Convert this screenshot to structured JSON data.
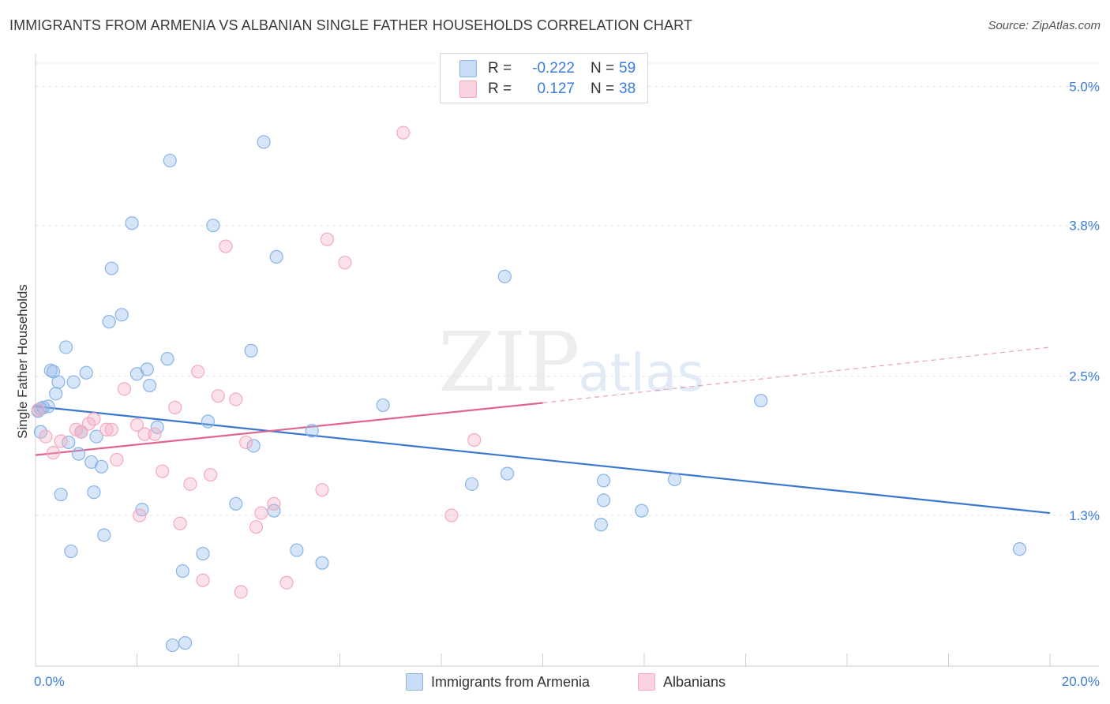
{
  "chart_data": {
    "type": "scatter",
    "title": "IMMIGRANTS FROM ARMENIA VS ALBANIAN SINGLE FATHER HOUSEHOLDS CORRELATION CHART",
    "source": "Source: ZipAtlas.com",
    "xlabel": "",
    "ylabel": "Single Father Households",
    "xlim": [
      0,
      20
    ],
    "ylim": [
      0,
      5.2
    ],
    "x_tick_labels": [
      "0.0%",
      "20.0%"
    ],
    "y_ticks": [
      1.3,
      2.5,
      3.8,
      5.0
    ],
    "y_tick_labels": [
      "1.3%",
      "2.5%",
      "3.8%",
      "5.0%"
    ],
    "watermark": {
      "main": "ZIP",
      "sub": "atlas"
    },
    "legend": {
      "rows": [
        {
          "r_label": "R =",
          "r_value": "-0.222",
          "n_label": "N =",
          "n_value": "59"
        },
        {
          "r_label": "R =",
          "r_value": "0.127",
          "n_label": "N =",
          "n_value": "38"
        }
      ]
    },
    "series": [
      {
        "name": "Immigrants from Armenia",
        "color": "#8ab4e8",
        "line_color": "#3a78d0",
        "trend": {
          "x0": 0,
          "y0": 2.24,
          "x1": 20,
          "y1": 1.32
        },
        "points": [
          [
            0.05,
            2.2
          ],
          [
            0.1,
            2.02
          ],
          [
            0.15,
            2.23
          ],
          [
            0.25,
            2.24
          ],
          [
            0.3,
            2.55
          ],
          [
            0.35,
            2.54
          ],
          [
            0.4,
            2.35
          ],
          [
            0.45,
            2.45
          ],
          [
            0.5,
            1.48
          ],
          [
            0.6,
            2.75
          ],
          [
            0.65,
            1.93
          ],
          [
            0.7,
            0.99
          ],
          [
            0.75,
            2.45
          ],
          [
            0.85,
            1.83
          ],
          [
            0.9,
            2.02
          ],
          [
            1.0,
            2.53
          ],
          [
            1.1,
            1.76
          ],
          [
            1.15,
            1.5
          ],
          [
            1.2,
            1.98
          ],
          [
            1.3,
            1.72
          ],
          [
            1.35,
            1.13
          ],
          [
            1.45,
            2.97
          ],
          [
            1.5,
            3.43
          ],
          [
            1.7,
            3.03
          ],
          [
            1.9,
            3.82
          ],
          [
            2.0,
            2.52
          ],
          [
            2.1,
            1.35
          ],
          [
            2.2,
            2.56
          ],
          [
            2.25,
            2.42
          ],
          [
            2.4,
            2.06
          ],
          [
            2.6,
            2.65
          ],
          [
            2.65,
            4.36
          ],
          [
            2.7,
            0.18
          ],
          [
            2.9,
            0.82
          ],
          [
            2.95,
            0.2
          ],
          [
            3.3,
            0.97
          ],
          [
            3.4,
            2.11
          ],
          [
            3.5,
            3.8
          ],
          [
            3.95,
            1.4
          ],
          [
            4.25,
            2.72
          ],
          [
            4.3,
            1.9
          ],
          [
            4.5,
            4.52
          ],
          [
            4.7,
            1.34
          ],
          [
            4.75,
            3.53
          ],
          [
            5.15,
            1.0
          ],
          [
            5.45,
            2.03
          ],
          [
            5.65,
            0.89
          ],
          [
            6.85,
            2.25
          ],
          [
            8.6,
            1.57
          ],
          [
            9.25,
            3.36
          ],
          [
            9.3,
            1.66
          ],
          [
            11.15,
            1.22
          ],
          [
            11.2,
            1.43
          ],
          [
            11.2,
            1.6
          ],
          [
            11.95,
            1.34
          ],
          [
            12.6,
            1.61
          ],
          [
            14.3,
            2.29
          ],
          [
            19.4,
            1.01
          ],
          [
            0.1,
            2.22
          ]
        ]
      },
      {
        "name": "Albanians",
        "color": "#f4a9c0",
        "line_color": "#e0648f",
        "trend": {
          "x0": 0,
          "y0": 1.82,
          "x1": 10,
          "y1": 2.27
        },
        "trend_dashed": {
          "x0": 10,
          "y0": 2.27,
          "x1": 20,
          "y1": 2.75
        },
        "points": [
          [
            0.05,
            2.21
          ],
          [
            0.2,
            1.98
          ],
          [
            0.35,
            1.84
          ],
          [
            0.5,
            1.94
          ],
          [
            0.8,
            2.04
          ],
          [
            0.9,
            2.02
          ],
          [
            1.05,
            2.09
          ],
          [
            1.15,
            2.13
          ],
          [
            1.4,
            2.04
          ],
          [
            1.5,
            2.04
          ],
          [
            1.6,
            1.78
          ],
          [
            1.75,
            2.39
          ],
          [
            2.0,
            2.08
          ],
          [
            2.05,
            1.3
          ],
          [
            2.15,
            2.0
          ],
          [
            2.35,
            2.0
          ],
          [
            2.5,
            1.68
          ],
          [
            2.75,
            2.23
          ],
          [
            2.85,
            1.23
          ],
          [
            3.05,
            1.57
          ],
          [
            3.2,
            2.54
          ],
          [
            3.3,
            0.74
          ],
          [
            3.45,
            1.65
          ],
          [
            3.6,
            2.33
          ],
          [
            3.75,
            3.62
          ],
          [
            3.95,
            2.3
          ],
          [
            4.05,
            0.64
          ],
          [
            4.15,
            1.93
          ],
          [
            4.35,
            1.2
          ],
          [
            4.45,
            1.32
          ],
          [
            4.7,
            1.4
          ],
          [
            4.95,
            0.72
          ],
          [
            5.65,
            1.52
          ],
          [
            5.75,
            3.68
          ],
          [
            6.1,
            3.48
          ],
          [
            7.25,
            4.6
          ],
          [
            8.2,
            1.3
          ],
          [
            8.65,
            1.95
          ]
        ]
      }
    ]
  }
}
